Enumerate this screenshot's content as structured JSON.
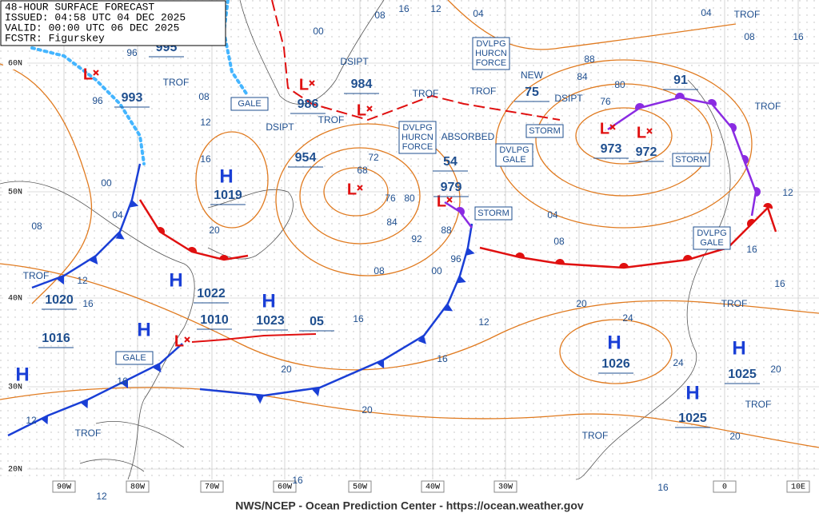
{
  "header": {
    "lines": [
      "48-HOUR SURFACE FORECAST",
      "ISSUED: 04:58 UTC 04 DEC 2025",
      "VALID: 00:00 UTC 06 DEC 2025",
      "FCSTR: Figurskey"
    ]
  },
  "footer": "NWS/NCEP - Ocean Prediction Center - https://ocean.weather.gov",
  "lat_labels": [
    "60N",
    "50N",
    "40N",
    "30N",
    "20N"
  ],
  "lon_labels": [
    "90W",
    "80W",
    "70W",
    "60W",
    "50W",
    "40W",
    "30W",
    "0",
    "10E"
  ],
  "highs": [
    "H",
    "H",
    "H",
    "H",
    "H",
    "H",
    "H",
    "H"
  ],
  "lows": [
    "L",
    "L",
    "L",
    "L",
    "L",
    "L",
    "L",
    "L"
  ],
  "pressure_labels": [
    "1019",
    "1022",
    "1020",
    "1023",
    "1010",
    "1016",
    "1026",
    "1025",
    "1025",
    "993",
    "995",
    "986",
    "984",
    "954",
    "979",
    "973",
    "972",
    "91",
    "75",
    "54",
    "05"
  ],
  "isobar_labels": [
    "08",
    "16",
    "12",
    "04",
    "04",
    "08",
    "16",
    "00",
    "96",
    "96",
    "08",
    "12",
    "16",
    "00",
    "04",
    "08",
    "12",
    "16",
    "20",
    "88",
    "84",
    "80",
    "76",
    "72",
    "68",
    "76",
    "80",
    "84",
    "88",
    "92",
    "96",
    "00",
    "08",
    "04",
    "08",
    "12",
    "16",
    "16",
    "20",
    "24",
    "24",
    "20",
    "20",
    "12",
    "16",
    "16",
    "20",
    "20",
    "16",
    "12",
    "16",
    "12",
    "16"
  ],
  "text_labels": [
    "TROF",
    "TROF",
    "TROF",
    "TROF",
    "TROF",
    "TROF",
    "TROF",
    "TROF",
    "TROF",
    "TROF",
    "TROF",
    "DSIPT",
    "DSIPT",
    "DSIPT",
    "NEW",
    "ABSORBED"
  ],
  "boxed_labels": [
    {
      "lines": [
        "GALE"
      ]
    },
    {
      "lines": [
        "DVLPG",
        "HURCN",
        "FORCE"
      ]
    },
    {
      "lines": [
        "DVLPG",
        "HURCN",
        "FORCE"
      ]
    },
    {
      "lines": [
        "STORM"
      ]
    },
    {
      "lines": [
        "DVLPG",
        "GALE"
      ]
    },
    {
      "lines": [
        "STORM"
      ]
    },
    {
      "lines": [
        "STORM"
      ]
    },
    {
      "lines": [
        "DVLPG",
        "GALE"
      ]
    },
    {
      "lines": [
        "GALE"
      ]
    }
  ]
}
